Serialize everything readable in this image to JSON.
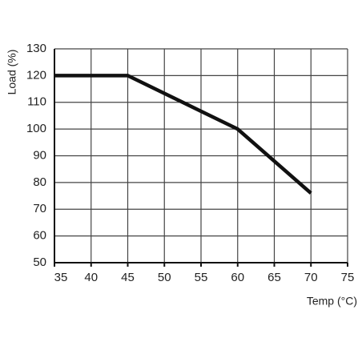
{
  "chart_data": {
    "type": "line",
    "x": [
      35,
      45,
      60,
      70
    ],
    "series": [
      {
        "color": "#111111",
        "values": [
          120,
          120,
          100,
          76
        ]
      }
    ],
    "xlabel": "Temp (°C)",
    "ylabel": "Load (%)",
    "xlim": [
      35,
      75
    ],
    "xticks": [
      35,
      40,
      45,
      50,
      55,
      60,
      65,
      70,
      75
    ],
    "ylim": [
      50,
      130
    ],
    "yticks": [
      50,
      60,
      70,
      80,
      90,
      100,
      110,
      120,
      130
    ],
    "grid": true
  }
}
